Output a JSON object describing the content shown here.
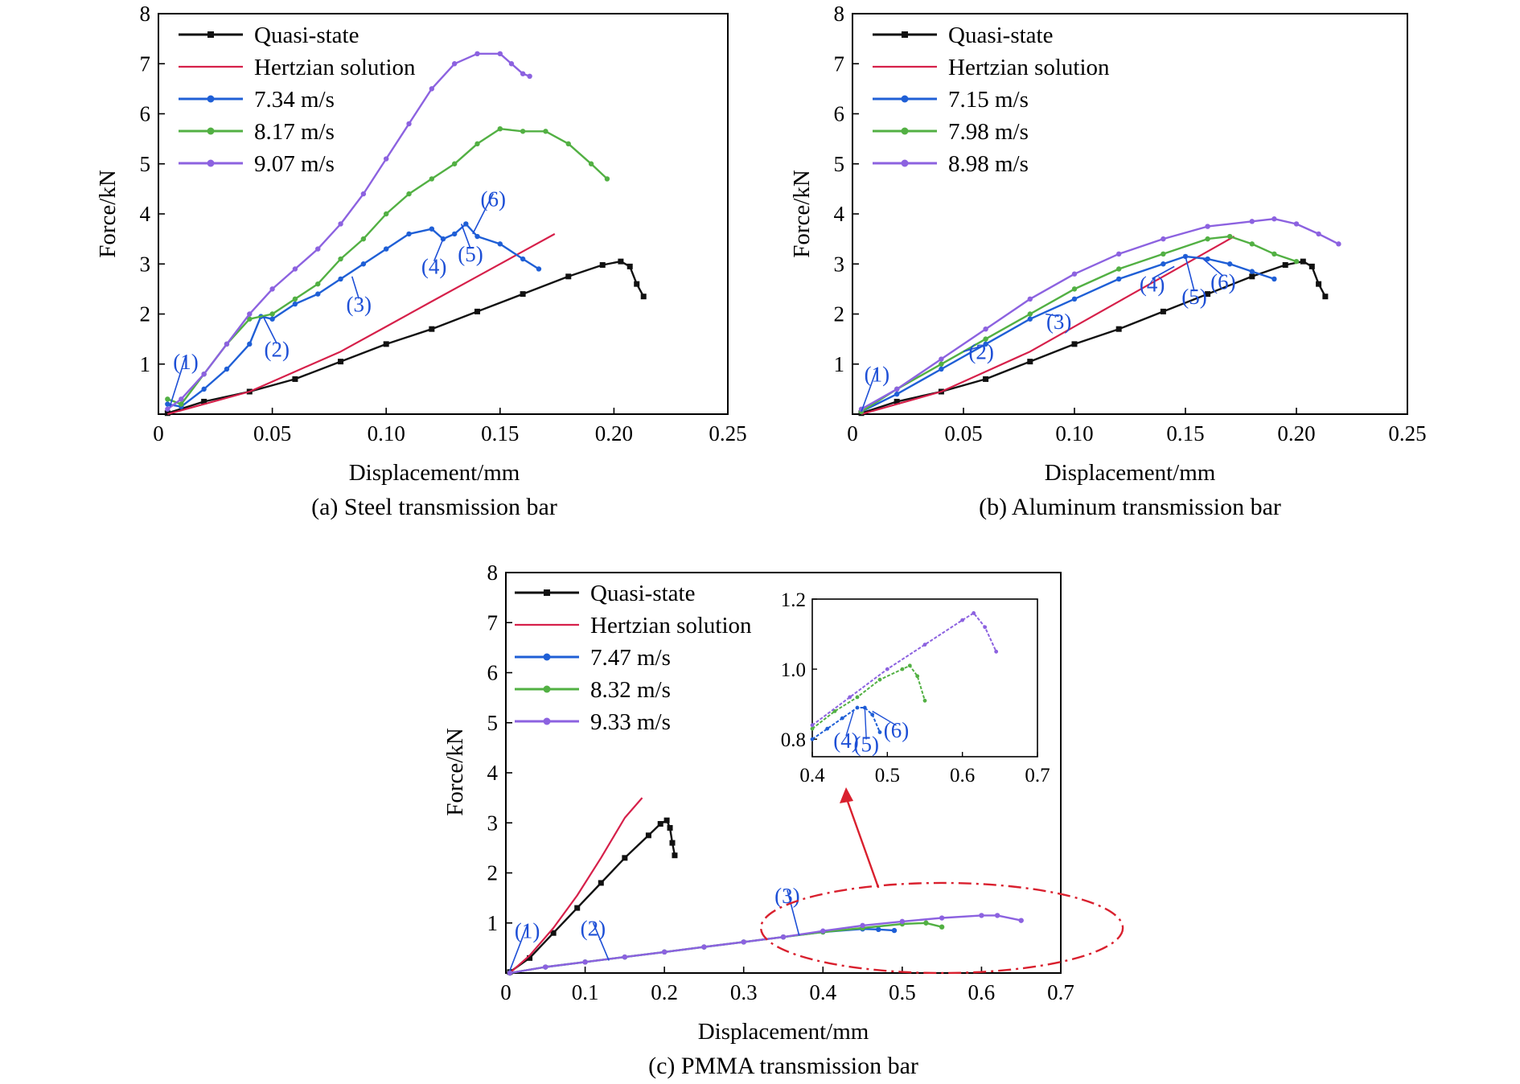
{
  "colors": {
    "quasi": "#111111",
    "hertz": "#d6204a",
    "blue": "#1f5fd6",
    "green": "#52b043",
    "purple": "#8c62e0",
    "annotation": "#1d4fd6",
    "zoom_marker": "#d9202e"
  },
  "chart_data": [
    {
      "id": "a",
      "type": "line",
      "caption": "(a) Steel transmission bar",
      "xlabel": "Displacement/mm",
      "ylabel": "Force/kN",
      "xlim": [
        0,
        0.25
      ],
      "ylim": [
        0,
        8
      ],
      "xticks": [
        "0",
        "0.05",
        "0.10",
        "0.15",
        "0.20",
        "0.25"
      ],
      "yticks": [
        "1",
        "2",
        "3",
        "4",
        "5",
        "6",
        "7",
        "8"
      ],
      "legend_position": "top-left",
      "series": [
        {
          "name": "Quasi-state",
          "color_key": "quasi",
          "marker": "square",
          "x": [
            0.004,
            0.02,
            0.04,
            0.06,
            0.08,
            0.1,
            0.12,
            0.14,
            0.16,
            0.18,
            0.195,
            0.203,
            0.207,
            0.21,
            0.213
          ],
          "y": [
            0.02,
            0.25,
            0.45,
            0.7,
            1.05,
            1.4,
            1.7,
            2.05,
            2.4,
            2.75,
            2.98,
            3.05,
            2.95,
            2.6,
            2.35
          ]
        },
        {
          "name": "Hertzian solution",
          "color_key": "hertz",
          "marker": "none",
          "x": [
            0.004,
            0.02,
            0.04,
            0.06,
            0.08,
            0.1,
            0.12,
            0.14,
            0.16,
            0.174
          ],
          "y": [
            0.0,
            0.2,
            0.45,
            0.85,
            1.25,
            1.75,
            2.25,
            2.75,
            3.25,
            3.6
          ]
        },
        {
          "name": "7.34 m/s",
          "color_key": "blue",
          "marker": "circle",
          "x": [
            0.004,
            0.01,
            0.02,
            0.03,
            0.04,
            0.045,
            0.05,
            0.06,
            0.07,
            0.08,
            0.09,
            0.1,
            0.11,
            0.12,
            0.125,
            0.13,
            0.135,
            0.14,
            0.15,
            0.16,
            0.167
          ],
          "y": [
            0.2,
            0.15,
            0.5,
            0.9,
            1.4,
            1.95,
            1.9,
            2.2,
            2.4,
            2.7,
            3.0,
            3.3,
            3.6,
            3.7,
            3.5,
            3.6,
            3.8,
            3.55,
            3.4,
            3.1,
            2.9
          ]
        },
        {
          "name": "8.17 m/s",
          "color_key": "green",
          "marker": "circle",
          "x": [
            0.004,
            0.01,
            0.02,
            0.03,
            0.04,
            0.05,
            0.06,
            0.07,
            0.08,
            0.09,
            0.1,
            0.11,
            0.12,
            0.13,
            0.14,
            0.15,
            0.16,
            0.17,
            0.18,
            0.19,
            0.197
          ],
          "y": [
            0.3,
            0.2,
            0.8,
            1.4,
            1.9,
            2.0,
            2.3,
            2.6,
            3.1,
            3.5,
            4.0,
            4.4,
            4.7,
            5.0,
            5.4,
            5.7,
            5.65,
            5.65,
            5.4,
            5.0,
            4.7
          ]
        },
        {
          "name": "9.07 m/s",
          "color_key": "purple",
          "marker": "circle",
          "x": [
            0.004,
            0.01,
            0.02,
            0.03,
            0.04,
            0.05,
            0.06,
            0.07,
            0.08,
            0.09,
            0.1,
            0.11,
            0.12,
            0.13,
            0.14,
            0.15,
            0.155,
            0.16,
            0.163
          ],
          "y": [
            0.1,
            0.3,
            0.8,
            1.4,
            2.0,
            2.5,
            2.9,
            3.3,
            3.8,
            4.4,
            5.1,
            5.8,
            6.5,
            7.0,
            7.2,
            7.2,
            7.0,
            6.8,
            6.75
          ]
        }
      ],
      "annotations": [
        {
          "text": "(1)",
          "x": 0.012,
          "y": 0.9,
          "px": 0.005,
          "py": 0.15
        },
        {
          "text": "(2)",
          "x": 0.052,
          "y": 1.15,
          "px": 0.046,
          "py": 1.95
        },
        {
          "text": "(3)",
          "x": 0.088,
          "y": 2.05,
          "px": 0.085,
          "py": 2.75
        },
        {
          "text": "(4)",
          "x": 0.121,
          "y": 2.8,
          "px": 0.125,
          "py": 3.5
        },
        {
          "text": "(5)",
          "x": 0.137,
          "y": 3.05,
          "px": 0.133,
          "py": 3.8
        },
        {
          "text": "(6)",
          "x": 0.147,
          "y": 4.15,
          "px": 0.138,
          "py": 3.6
        }
      ]
    },
    {
      "id": "b",
      "type": "line",
      "caption": "(b) Aluminum transmission bar",
      "xlabel": "Displacement/mm",
      "ylabel": "Force/kN",
      "xlim": [
        0,
        0.25
      ],
      "ylim": [
        0,
        8
      ],
      "xticks": [
        "0",
        "0.05",
        "0.10",
        "0.15",
        "0.20",
        "0.25"
      ],
      "yticks": [
        "1",
        "2",
        "3",
        "4",
        "5",
        "6",
        "7",
        "8"
      ],
      "legend_position": "top-left",
      "series": [
        {
          "name": "Quasi-state",
          "color_key": "quasi",
          "marker": "square",
          "x": [
            0.004,
            0.02,
            0.04,
            0.06,
            0.08,
            0.1,
            0.12,
            0.14,
            0.16,
            0.18,
            0.195,
            0.203,
            0.207,
            0.21,
            0.213
          ],
          "y": [
            0.02,
            0.25,
            0.45,
            0.7,
            1.05,
            1.4,
            1.7,
            2.05,
            2.4,
            2.75,
            2.98,
            3.05,
            2.95,
            2.6,
            2.35
          ]
        },
        {
          "name": "Hertzian solution",
          "color_key": "hertz",
          "marker": "none",
          "x": [
            0.004,
            0.02,
            0.04,
            0.06,
            0.08,
            0.1,
            0.12,
            0.14,
            0.16,
            0.172
          ],
          "y": [
            0.0,
            0.2,
            0.45,
            0.85,
            1.25,
            1.75,
            2.25,
            2.75,
            3.25,
            3.55
          ]
        },
        {
          "name": "7.15 m/s",
          "color_key": "blue",
          "marker": "circle",
          "x": [
            0.004,
            0.02,
            0.04,
            0.06,
            0.08,
            0.1,
            0.12,
            0.14,
            0.15,
            0.16,
            0.17,
            0.18,
            0.19
          ],
          "y": [
            0.05,
            0.4,
            0.9,
            1.4,
            1.9,
            2.3,
            2.7,
            3.0,
            3.15,
            3.1,
            3.0,
            2.85,
            2.7
          ]
        },
        {
          "name": "7.98 m/s",
          "color_key": "green",
          "marker": "circle",
          "x": [
            0.004,
            0.02,
            0.04,
            0.06,
            0.08,
            0.1,
            0.12,
            0.14,
            0.16,
            0.17,
            0.18,
            0.19,
            0.2
          ],
          "y": [
            0.05,
            0.5,
            1.0,
            1.5,
            2.0,
            2.5,
            2.9,
            3.2,
            3.5,
            3.55,
            3.4,
            3.2,
            3.05
          ]
        },
        {
          "name": "8.98 m/s",
          "color_key": "purple",
          "marker": "circle",
          "x": [
            0.004,
            0.02,
            0.04,
            0.06,
            0.08,
            0.1,
            0.12,
            0.14,
            0.16,
            0.18,
            0.19,
            0.2,
            0.21,
            0.219
          ],
          "y": [
            0.1,
            0.5,
            1.1,
            1.7,
            2.3,
            2.8,
            3.2,
            3.5,
            3.75,
            3.85,
            3.9,
            3.8,
            3.6,
            3.4
          ]
        }
      ],
      "annotations": [
        {
          "text": "(1)",
          "x": 0.011,
          "y": 0.65,
          "px": 0.004,
          "py": 0.05
        },
        {
          "text": "(2)",
          "x": 0.058,
          "y": 1.1,
          "px": 0.05,
          "py": 1.25
        },
        {
          "text": "(3)",
          "x": 0.093,
          "y": 1.7,
          "px": 0.087,
          "py": 2.0
        },
        {
          "text": "(4)",
          "x": 0.135,
          "y": 2.45,
          "px": 0.145,
          "py": 2.95
        },
        {
          "text": "(5)",
          "x": 0.154,
          "y": 2.2,
          "px": 0.15,
          "py": 3.15
        },
        {
          "text": "(6)",
          "x": 0.167,
          "y": 2.5,
          "px": 0.158,
          "py": 3.1
        }
      ]
    },
    {
      "id": "c",
      "type": "line",
      "caption": "(c) PMMA transmission bar",
      "xlabel": "Displacement/mm",
      "ylabel": "Force/kN",
      "xlim": [
        0,
        0.7
      ],
      "ylim": [
        0,
        8
      ],
      "xticks": [
        "0",
        "0.1",
        "0.2",
        "0.3",
        "0.4",
        "0.5",
        "0.6",
        "0.7"
      ],
      "yticks": [
        "1",
        "2",
        "3",
        "4",
        "5",
        "6",
        "7",
        "8"
      ],
      "legend_position": "top-left",
      "series": [
        {
          "name": "Quasi-state",
          "color_key": "quasi",
          "marker": "square",
          "x": [
            0.005,
            0.03,
            0.06,
            0.09,
            0.12,
            0.15,
            0.18,
            0.195,
            0.203,
            0.207,
            0.21,
            0.213
          ],
          "y": [
            0.02,
            0.3,
            0.8,
            1.3,
            1.8,
            2.3,
            2.75,
            2.98,
            3.05,
            2.9,
            2.6,
            2.35
          ]
        },
        {
          "name": "Hertzian solution",
          "color_key": "hertz",
          "marker": "none",
          "x": [
            0.005,
            0.03,
            0.06,
            0.09,
            0.12,
            0.15,
            0.172
          ],
          "y": [
            0.0,
            0.35,
            0.9,
            1.55,
            2.3,
            3.1,
            3.5
          ]
        },
        {
          "name": "7.47 m/s",
          "color_key": "blue",
          "marker": "circle",
          "x": [
            0.005,
            0.05,
            0.1,
            0.15,
            0.2,
            0.25,
            0.3,
            0.35,
            0.4,
            0.45,
            0.47,
            0.49
          ],
          "y": [
            0.0,
            0.12,
            0.22,
            0.32,
            0.42,
            0.52,
            0.62,
            0.72,
            0.82,
            0.88,
            0.87,
            0.85
          ]
        },
        {
          "name": "8.32 m/s",
          "color_key": "green",
          "marker": "circle",
          "x": [
            0.005,
            0.05,
            0.1,
            0.15,
            0.2,
            0.25,
            0.3,
            0.35,
            0.4,
            0.45,
            0.5,
            0.53,
            0.55
          ],
          "y": [
            0.0,
            0.12,
            0.22,
            0.32,
            0.42,
            0.52,
            0.62,
            0.72,
            0.82,
            0.9,
            0.98,
            1.0,
            0.92
          ]
        },
        {
          "name": "9.33 m/s",
          "color_key": "purple",
          "marker": "circle",
          "x": [
            0.005,
            0.05,
            0.1,
            0.15,
            0.2,
            0.25,
            0.3,
            0.35,
            0.4,
            0.45,
            0.5,
            0.55,
            0.6,
            0.62,
            0.65
          ],
          "y": [
            0.0,
            0.12,
            0.22,
            0.32,
            0.42,
            0.52,
            0.62,
            0.72,
            0.84,
            0.95,
            1.03,
            1.1,
            1.15,
            1.15,
            1.05
          ]
        }
      ],
      "annotations": [
        {
          "text": "(1)",
          "x": 0.027,
          "y": 0.7,
          "px": 0.005,
          "py": 0.05
        },
        {
          "text": "(2)",
          "x": 0.11,
          "y": 0.75,
          "px": 0.13,
          "py": 0.25
        },
        {
          "text": "(3)",
          "x": 0.355,
          "y": 1.4,
          "px": 0.37,
          "py": 0.75
        }
      ],
      "inset": {
        "xlim": [
          0.4,
          0.7
        ],
        "ylim": [
          0.75,
          1.2
        ],
        "xticks": [
          "0.4",
          "0.5",
          "0.6",
          "0.7"
        ],
        "yticks": [
          "0.8",
          "1.0",
          "1.2"
        ],
        "series": [
          {
            "color_key": "blue",
            "x": [
              0.4,
              0.42,
              0.44,
              0.46,
              0.47,
              0.48,
              0.49
            ],
            "y": [
              0.8,
              0.83,
              0.86,
              0.89,
              0.89,
              0.87,
              0.82
            ]
          },
          {
            "color_key": "green",
            "x": [
              0.4,
              0.43,
              0.46,
              0.49,
              0.52,
              0.53,
              0.54,
              0.55
            ],
            "y": [
              0.83,
              0.88,
              0.92,
              0.97,
              1.0,
              1.01,
              0.98,
              0.91
            ]
          },
          {
            "color_key": "purple",
            "x": [
              0.4,
              0.45,
              0.5,
              0.55,
              0.6,
              0.615,
              0.63,
              0.645
            ],
            "y": [
              0.84,
              0.92,
              1.0,
              1.07,
              1.14,
              1.16,
              1.12,
              1.05
            ]
          }
        ],
        "annotations": [
          {
            "text": "(4)",
            "x": 0.445,
            "y": 0.775,
            "px": 0.455,
            "py": 0.88
          },
          {
            "text": "(5)",
            "x": 0.472,
            "y": 0.765,
            "px": 0.47,
            "py": 0.89
          },
          {
            "text": "(6)",
            "x": 0.512,
            "y": 0.805,
            "px": 0.48,
            "py": 0.88
          }
        ]
      }
    }
  ]
}
